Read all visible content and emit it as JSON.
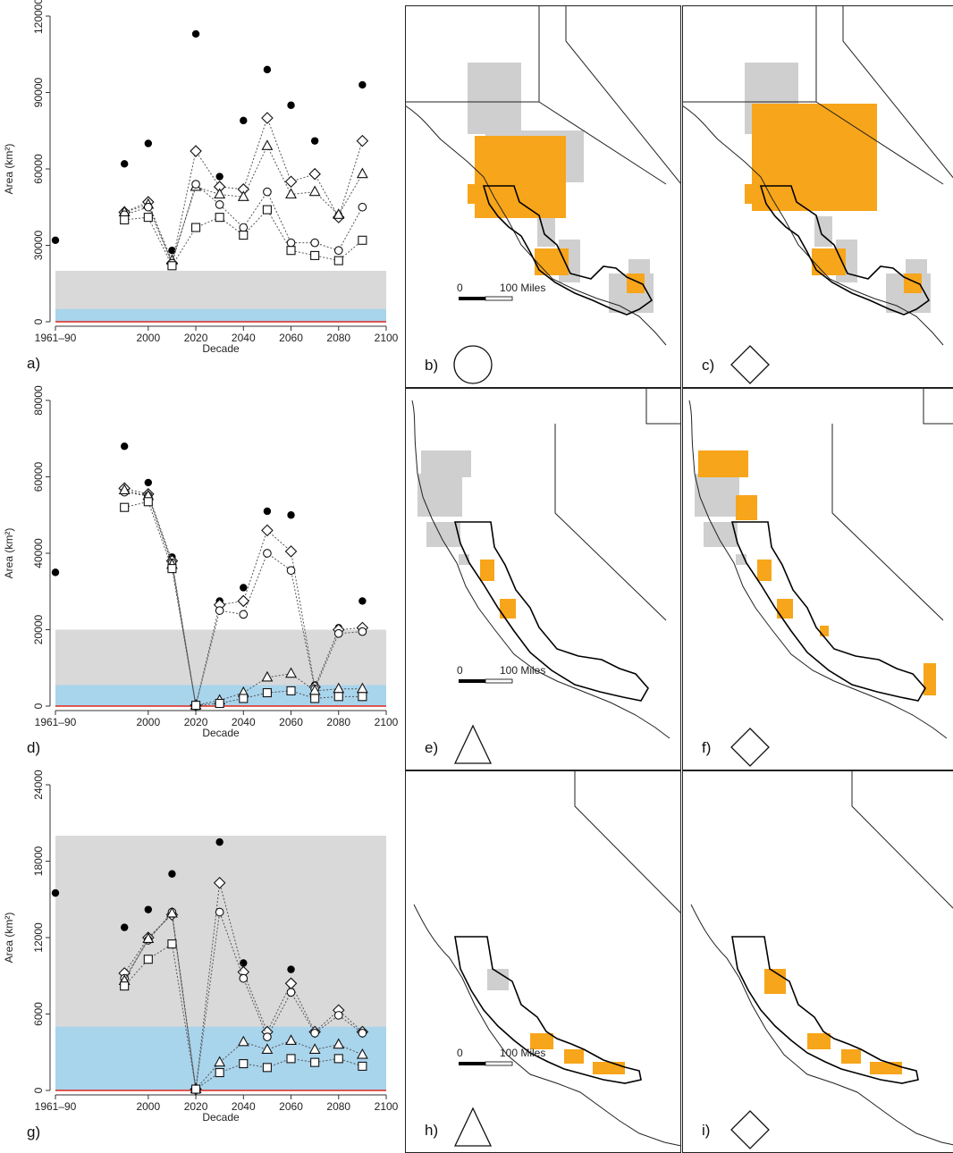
{
  "colors": {
    "band_gray": "#d9d9d9",
    "band_blue": "#a8d4ec",
    "baseline_red": "#e0261b",
    "land_gray": "#cfcfcf",
    "orange": "#f7a51a"
  },
  "chart_data": [
    {
      "panel": "a)",
      "type": "scatter",
      "xlabel": "Decade",
      "ylabel": "Area (km²)",
      "categories": [
        "1961–90",
        "1990",
        "2000",
        "2010",
        "2020",
        "2030",
        "2040",
        "2050",
        "2060",
        "2070",
        "2080",
        "2090"
      ],
      "x_tick_labels": [
        "1961–90",
        "2000",
        "2020",
        "2040",
        "2060",
        "2080",
        "2100"
      ],
      "ylim": [
        0,
        120000
      ],
      "y_ticks": [
        0,
        30000,
        60000,
        90000,
        120000
      ],
      "bands": {
        "gray": [
          0,
          20000
        ],
        "blue": [
          0,
          5000
        ]
      },
      "series": [
        {
          "marker": "filled-circle",
          "values": [
            32000,
            62000,
            70000,
            28000,
            113000,
            57000,
            79000,
            99000,
            85000,
            71000,
            42000,
            93000
          ]
        },
        {
          "marker": "diamond",
          "values": [
            null,
            43000,
            47000,
            23000,
            67000,
            53000,
            52000,
            80000,
            55000,
            58000,
            41000,
            71000
          ]
        },
        {
          "marker": "triangle",
          "values": [
            null,
            43000,
            46000,
            24000,
            53000,
            50000,
            49000,
            69000,
            50000,
            51000,
            42000,
            58000
          ]
        },
        {
          "marker": "circle",
          "values": [
            null,
            42000,
            45000,
            23000,
            54000,
            46000,
            37000,
            51000,
            31000,
            31000,
            28000,
            45000
          ]
        },
        {
          "marker": "square",
          "values": [
            null,
            40000,
            41000,
            22000,
            37000,
            41000,
            34000,
            44000,
            28000,
            26000,
            24000,
            32000
          ]
        }
      ]
    },
    {
      "panel": "d)",
      "type": "scatter",
      "xlabel": "Decade",
      "ylabel": "Area (km²)",
      "categories": [
        "1961–90",
        "1990",
        "2000",
        "2010",
        "2020",
        "2030",
        "2040",
        "2050",
        "2060",
        "2070",
        "2080",
        "2090"
      ],
      "x_tick_labels": [
        "1961–90",
        "2000",
        "2020",
        "2040",
        "2060",
        "2080",
        "2100"
      ],
      "ylim": [
        0,
        80000
      ],
      "y_ticks": [
        0,
        20000,
        40000,
        60000,
        80000
      ],
      "bands": {
        "gray": [
          0,
          20000
        ],
        "blue": [
          0,
          5500
        ]
      },
      "series": [
        {
          "marker": "filled-circle",
          "values": [
            35000,
            68000,
            58500,
            39000,
            200,
            27500,
            31000,
            51000,
            50000,
            5500,
            20500,
            27500
          ]
        },
        {
          "marker": "diamond",
          "values": [
            null,
            57000,
            55500,
            38000,
            200,
            26500,
            27500,
            46000,
            40500,
            5000,
            20000,
            20500
          ]
        },
        {
          "marker": "circle",
          "values": [
            null,
            56000,
            55000,
            37500,
            200,
            25000,
            24000,
            40000,
            35500,
            4500,
            19000,
            19500
          ]
        },
        {
          "marker": "triangle",
          "values": [
            null,
            56500,
            55000,
            37000,
            200,
            1500,
            3500,
            7500,
            8500,
            4000,
            4500,
            4500
          ]
        },
        {
          "marker": "square",
          "values": [
            null,
            52000,
            53500,
            36000,
            200,
            700,
            2000,
            3500,
            4000,
            2000,
            2500,
            2500
          ]
        }
      ]
    },
    {
      "panel": "g)",
      "type": "scatter",
      "xlabel": "Decade",
      "ylabel": "Area (km²)",
      "categories": [
        "1961–90",
        "1990",
        "2000",
        "2010",
        "2020",
        "2030",
        "2040",
        "2050",
        "2060",
        "2070",
        "2080",
        "2090"
      ],
      "x_tick_labels": [
        "1961–90",
        "2000",
        "2020",
        "2040",
        "2060",
        "2080",
        "2100"
      ],
      "ylim": [
        0,
        24000
      ],
      "y_ticks": [
        0,
        6000,
        12000,
        18000,
        24000
      ],
      "bands": {
        "gray": [
          0,
          20000
        ],
        "blue": [
          0,
          5000
        ]
      },
      "series": [
        {
          "marker": "filled-circle",
          "values": [
            15500,
            12800,
            14200,
            17000,
            100,
            19500,
            10000,
            4600,
            9500,
            4600,
            6300,
            4600
          ]
        },
        {
          "marker": "diamond",
          "values": [
            null,
            9200,
            12000,
            13800,
            100,
            16300,
            9300,
            4600,
            8400,
            4600,
            6300,
            4600
          ]
        },
        {
          "marker": "circle",
          "values": [
            null,
            8800,
            11800,
            14000,
            100,
            14000,
            8800,
            4200,
            7700,
            4500,
            5900,
            4500
          ]
        },
        {
          "marker": "triangle",
          "values": [
            null,
            8600,
            11900,
            13900,
            100,
            2200,
            3800,
            3200,
            3900,
            3200,
            3600,
            2800
          ]
        },
        {
          "marker": "square",
          "values": [
            null,
            8200,
            10300,
            11500,
            100,
            1400,
            2100,
            1800,
            2500,
            2200,
            2500,
            1900
          ]
        }
      ]
    }
  ],
  "maps": [
    {
      "panel": "b)",
      "symbol": "circle",
      "scale_zero": "0",
      "scale_label": "100 Miles"
    },
    {
      "panel": "c)",
      "symbol": "diamond",
      "scale_zero": "",
      "scale_label": ""
    },
    {
      "panel": "e)",
      "symbol": "triangle",
      "scale_zero": "0",
      "scale_label": "100 Miles"
    },
    {
      "panel": "f)",
      "symbol": "diamond",
      "scale_zero": "",
      "scale_label": ""
    },
    {
      "panel": "h)",
      "symbol": "triangle",
      "scale_zero": "0",
      "scale_label": "100 Miles"
    },
    {
      "panel": "i)",
      "symbol": "diamond",
      "scale_zero": "",
      "scale_label": ""
    }
  ]
}
